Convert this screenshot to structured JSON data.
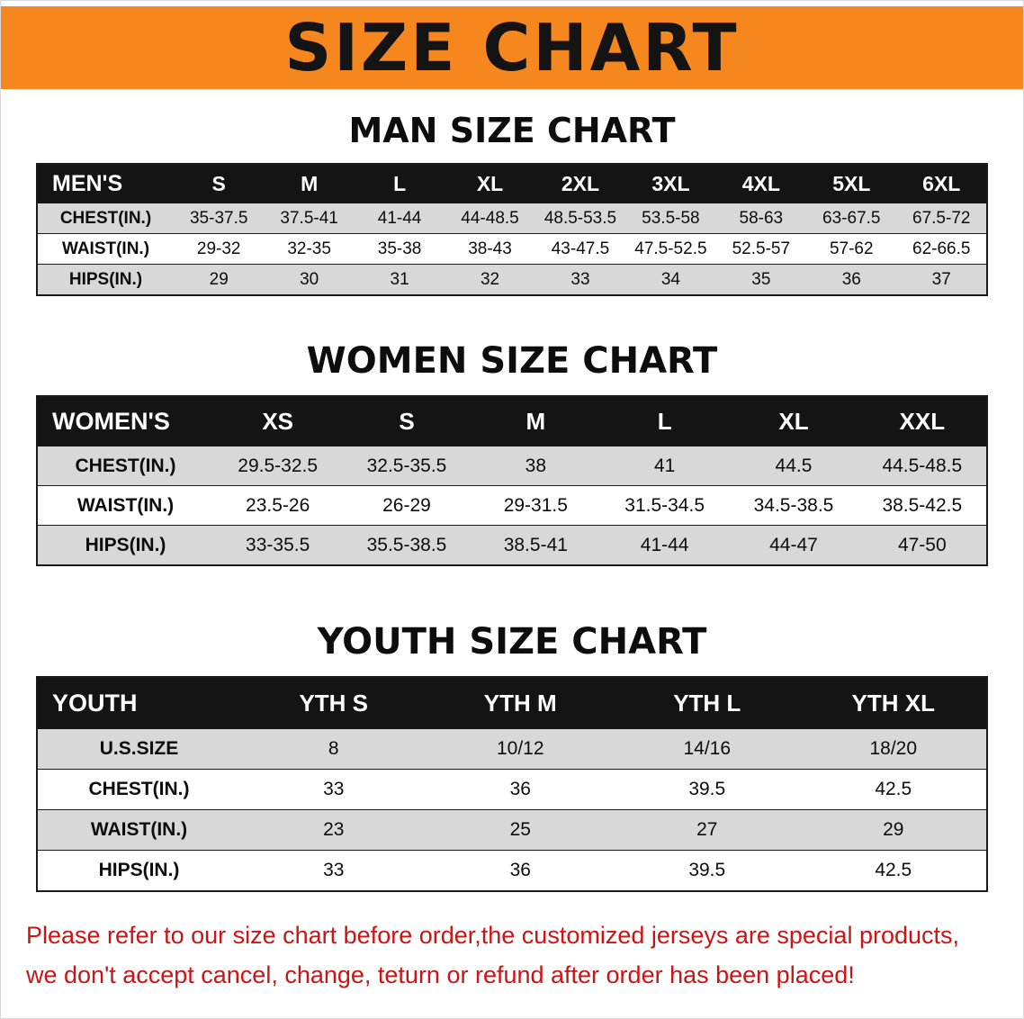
{
  "banner": {
    "title": "SIZE CHART"
  },
  "colors": {
    "banner_orange": "#f6871f",
    "table_header_black": "#141414",
    "row_gray": "#d8d8d8",
    "disclaimer_red": "#cc1414"
  },
  "sections": [
    {
      "heading": "MAN SIZE CHART",
      "table": {
        "header": [
          "MEN'S",
          "S",
          "M",
          "L",
          "XL",
          "2XL",
          "3XL",
          "4XL",
          "5XL",
          "6XL"
        ],
        "rows": [
          [
            "CHEST(IN.)",
            "35-37.5",
            "37.5-41",
            "41-44",
            "44-48.5",
            "48.5-53.5",
            "53.5-58",
            "58-63",
            "63-67.5",
            "67.5-72"
          ],
          [
            "WAIST(IN.)",
            "29-32",
            "32-35",
            "35-38",
            "38-43",
            "43-47.5",
            "47.5-52.5",
            "52.5-57",
            "57-62",
            "62-66.5"
          ],
          [
            "HIPS(IN.)",
            "29",
            "30",
            "31",
            "32",
            "33",
            "34",
            "35",
            "36",
            "37"
          ]
        ]
      }
    },
    {
      "heading": "WOMEN SIZE CHART",
      "table": {
        "header": [
          "WOMEN'S",
          "XS",
          "S",
          "M",
          "L",
          "XL",
          "XXL"
        ],
        "rows": [
          [
            "CHEST(IN.)",
            "29.5-32.5",
            "32.5-35.5",
            "38",
            "41",
            "44.5",
            "44.5-48.5"
          ],
          [
            "WAIST(IN.)",
            "23.5-26",
            "26-29",
            "29-31.5",
            "31.5-34.5",
            "34.5-38.5",
            "38.5-42.5"
          ],
          [
            "HIPS(IN.)",
            "33-35.5",
            "35.5-38.5",
            "38.5-41",
            "41-44",
            "44-47",
            "47-50"
          ]
        ]
      }
    },
    {
      "heading": "YOUTH SIZE CHART",
      "table": {
        "header": [
          "YOUTH",
          "YTH S",
          "YTH M",
          "YTH L",
          "YTH XL"
        ],
        "rows": [
          [
            "U.S.SIZE",
            "8",
            "10/12",
            "14/16",
            "18/20"
          ],
          [
            "CHEST(IN.)",
            "33",
            "36",
            "39.5",
            "42.5"
          ],
          [
            "WAIST(IN.)",
            "23",
            "25",
            "27",
            "29"
          ],
          [
            "HIPS(IN.)",
            "33",
            "36",
            "39.5",
            "42.5"
          ]
        ]
      }
    }
  ],
  "disclaimer": {
    "lines": [
      "Please refer to our size chart before order,the customized jerseys are special products,",
      "we don't accept cancel, change, teturn or refund after order has been placed!"
    ]
  }
}
